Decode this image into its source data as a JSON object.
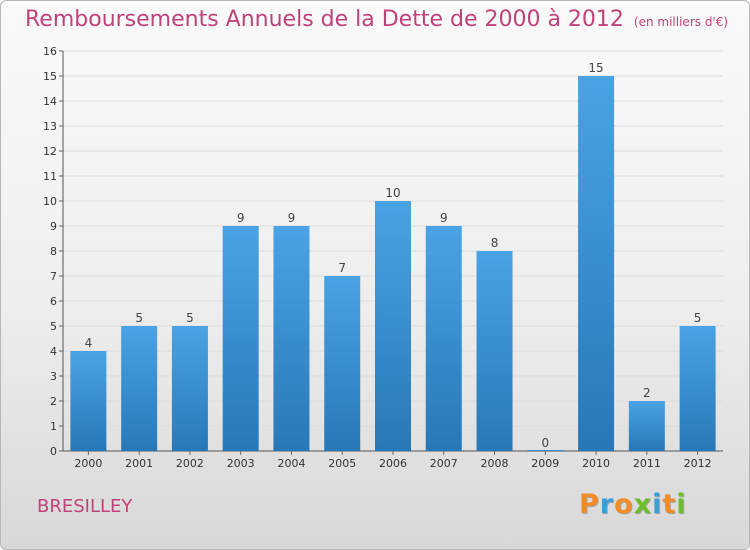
{
  "header": {
    "title": "Remboursements Annuels de la Dette de 2000 à 2012",
    "unit": "(en milliers d'€)"
  },
  "footer": {
    "commune": "BRESILLEY",
    "logo_text": "Proxiti",
    "logo_colors": [
      "#f28c28",
      "#3aa0dc",
      "#f28c28",
      "#6cbf2a",
      "#3aa0dc",
      "#f28c28",
      "#6cbf2a"
    ]
  },
  "colors": {
    "bar": "#4aa3e4",
    "bar_dark": "#2878b8",
    "title": "#c0427a",
    "grid": "#dddddd"
  },
  "chart_data": {
    "type": "bar",
    "title": "Remboursements Annuels de la Dette de 2000 à 2012",
    "xlabel": "",
    "ylabel": "",
    "categories": [
      "2000",
      "2001",
      "2002",
      "2003",
      "2004",
      "2005",
      "2006",
      "2007",
      "2008",
      "2009",
      "2010",
      "2011",
      "2012"
    ],
    "values": [
      4,
      5,
      5,
      9,
      9,
      7,
      10,
      9,
      8,
      0,
      15,
      2,
      5
    ],
    "ylim": [
      0,
      16
    ],
    "yticks": [
      "0",
      "1",
      "2",
      "3",
      "4",
      "5",
      "6",
      "7",
      "8",
      "9",
      "10",
      "11",
      "12",
      "13",
      "14",
      "15",
      "16"
    ],
    "grid": true,
    "data_labels": true
  }
}
